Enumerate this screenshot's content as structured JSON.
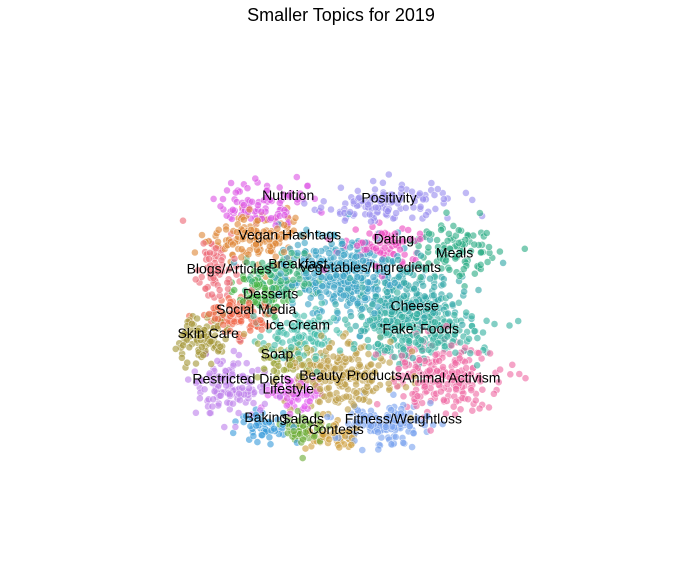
{
  "chart_data": {
    "type": "scatter",
    "title": "Smaller Topics for 2019",
    "xlabel": "",
    "ylabel": "",
    "axes_visible": false,
    "grid": false,
    "legend": "none",
    "x_range": [
      -100,
      100
    ],
    "y_range": [
      -100,
      100
    ],
    "clusters": [
      {
        "label": "Nutrition",
        "color": "#de59e6",
        "x": -50,
        "y": 82,
        "sx": 14,
        "sy": 9,
        "n": 95
      },
      {
        "label": "Positivity",
        "color": "#9a8ff0",
        "x": 26,
        "y": 82,
        "sx": 18,
        "sy": 8,
        "n": 115
      },
      {
        "label": "Dating",
        "color": "#ee4fc2",
        "x": 26,
        "y": 48,
        "sx": 12,
        "sy": 9,
        "n": 80
      },
      {
        "label": "Meals",
        "color": "#2fae87",
        "x": 72,
        "y": 44,
        "sx": 12,
        "sy": 12,
        "n": 95
      },
      {
        "label": "Vegan Hashtags",
        "color": "#e08a3c",
        "x": -52,
        "y": 52,
        "sx": 15,
        "sy": 11,
        "n": 140
      },
      {
        "label": "Blogs/Articles",
        "color": "#ee6b79",
        "x": -77,
        "y": 30,
        "sx": 8,
        "sy": 13,
        "n": 65
      },
      {
        "label": "Breakfast",
        "color": "#3ab27a",
        "x": -37,
        "y": 20,
        "sx": 11,
        "sy": 10,
        "n": 95
      },
      {
        "label": "Vegetables/Ingredients",
        "color": "#3ea5c7",
        "x": 2,
        "y": 24,
        "sx": 18,
        "sy": 17,
        "n": 330
      },
      {
        "label": "Desserts",
        "color": "#44b344",
        "x": -51,
        "y": 6,
        "sx": 8,
        "sy": 8,
        "n": 80
      },
      {
        "label": "Social Media",
        "color": "#f16a4d",
        "x": -63,
        "y": -12,
        "sx": 11,
        "sy": 9,
        "n": 110
      },
      {
        "label": "Cheese",
        "color": "#34a9a9",
        "x": 40,
        "y": 2,
        "sx": 18,
        "sy": 15,
        "n": 240
      },
      {
        "label": "'Fake' Foods",
        "color": "#38b3a2",
        "x": 48,
        "y": -25,
        "sx": 20,
        "sy": 13,
        "n": 260
      },
      {
        "label": "Ice Cream",
        "color": "#4bbfae",
        "x": -26,
        "y": -28,
        "sx": 12,
        "sy": 11,
        "n": 110
      },
      {
        "label": "Skin Care",
        "color": "#a6983a",
        "x": -86,
        "y": -30,
        "sx": 8,
        "sy": 11,
        "n": 95
      },
      {
        "label": "Soap",
        "color": "#9da63a",
        "x": -37,
        "y": -48,
        "sx": 8,
        "sy": 7,
        "n": 55
      },
      {
        "label": "Beauty Products",
        "color": "#c0a14c",
        "x": 0,
        "y": -63,
        "sx": 17,
        "sy": 13,
        "n": 230
      },
      {
        "label": "Animal Activism",
        "color": "#f06da6",
        "x": 62,
        "y": -62,
        "sx": 18,
        "sy": 15,
        "n": 230
      },
      {
        "label": "Restricted Diets",
        "color": "#c084ec",
        "x": -70,
        "y": -70,
        "sx": 11,
        "sy": 13,
        "n": 120
      },
      {
        "label": "Lifestyle",
        "color": "#e35cf0",
        "x": -28,
        "y": -74,
        "sx": 8,
        "sy": 8,
        "n": 65
      },
      {
        "label": "Baking",
        "color": "#3d9edc",
        "x": -49,
        "y": -104,
        "sx": 8,
        "sy": 7,
        "n": 55
      },
      {
        "label": "Salads",
        "color": "#6fae3a",
        "x": -24,
        "y": -106,
        "sx": 7,
        "sy": 7,
        "n": 55
      },
      {
        "label": "Contests",
        "color": "#d0a03e",
        "x": -5,
        "y": -112,
        "sx": 9,
        "sy": 6,
        "n": 60
      },
      {
        "label": "Fitness/Weightloss",
        "color": "#7ba4ef",
        "x": 28,
        "y": -102,
        "sx": 13,
        "sy": 9,
        "n": 140
      }
    ],
    "annotations": [
      {
        "text": "Nutrition",
        "x": -33,
        "y": 88
      },
      {
        "text": "Positivity",
        "x": 30,
        "y": 86
      },
      {
        "text": "Dating",
        "x": 33,
        "y": 52
      },
      {
        "text": "Meals",
        "x": 71,
        "y": 40
      },
      {
        "text": "Vegan Hashtags",
        "x": -32,
        "y": 55
      },
      {
        "text": "Blogs/Articles",
        "x": -70,
        "y": 27
      },
      {
        "text": "Breakfast",
        "x": -27,
        "y": 31
      },
      {
        "text": "Vegetables/Ingredients",
        "x": 18,
        "y": 28
      },
      {
        "text": "Desserts",
        "x": -44,
        "y": 6
      },
      {
        "text": "Social Media",
        "x": -53,
        "y": -7
      },
      {
        "text": "Cheese",
        "x": 46,
        "y": -4
      },
      {
        "text": "'Fake' Foods",
        "x": 49,
        "y": -23
      },
      {
        "text": "Ice Cream",
        "x": -27,
        "y": -20
      },
      {
        "text": "Skin Care",
        "x": -83,
        "y": -27
      },
      {
        "text": "Soap",
        "x": -40,
        "y": -44
      },
      {
        "text": "Beauty Products",
        "x": 6,
        "y": -62
      },
      {
        "text": "Animal Activism",
        "x": 69,
        "y": -64
      },
      {
        "text": "Restricted Diets",
        "x": -62,
        "y": -65
      },
      {
        "text": "Lifestyle",
        "x": -33,
        "y": -73
      },
      {
        "text": "Baking",
        "x": -47,
        "y": -97
      },
      {
        "text": "Salads",
        "x": -24,
        "y": -98
      },
      {
        "text": "Contests",
        "x": -3,
        "y": -107
      },
      {
        "text": "Fitness/Weightloss",
        "x": 39,
        "y": -98
      }
    ]
  }
}
